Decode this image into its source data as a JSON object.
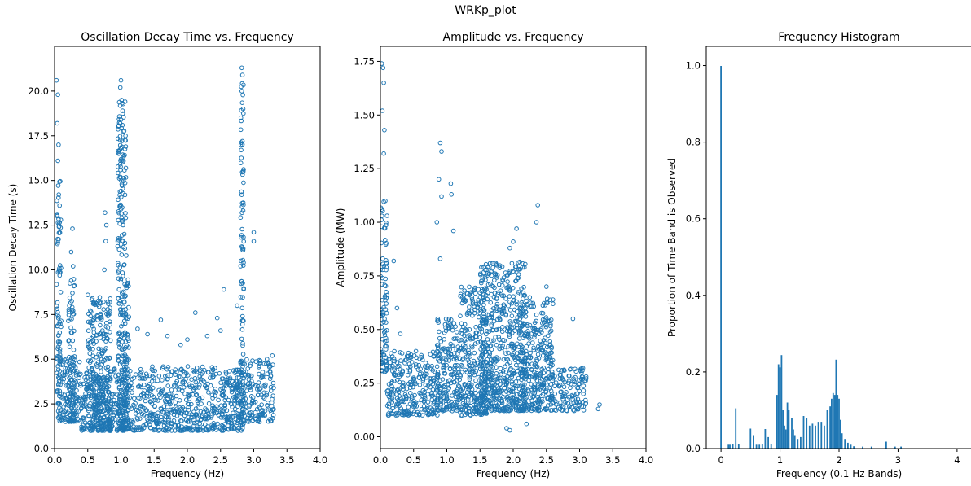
{
  "figure": {
    "suptitle": "WRKp_plot"
  },
  "colors": {
    "series": "#1f77b4",
    "axis": "#000000",
    "background": "#ffffff"
  },
  "chart_data": [
    {
      "type": "scatter",
      "title": "Oscillation Decay Time vs. Frequency",
      "xlabel": "Frequency (Hz)",
      "ylabel": "Oscillation Decay Time (s)",
      "xlim": [
        0,
        4
      ],
      "ylim": [
        0,
        22.5
      ],
      "xticks": [
        0,
        0.5,
        1,
        1.5,
        2,
        2.5,
        3,
        3.5,
        4
      ],
      "xtick_labels": [
        "0.0",
        "0.5",
        "1.0",
        "1.5",
        "2.0",
        "2.5",
        "3.0",
        "3.5",
        "4.0"
      ],
      "yticks": [
        0,
        2.5,
        5,
        7.5,
        10,
        12.5,
        15,
        17.5,
        20
      ],
      "ytick_labels": [
        "0.0",
        "2.5",
        "5.0",
        "7.5",
        "10.0",
        "12.5",
        "15.0",
        "17.5",
        "20.0"
      ],
      "marker": "hollow-circle",
      "density_bands": [
        {
          "x": [
            0.03,
            0.1
          ],
          "y": [
            2.5,
            15
          ]
        },
        {
          "x": [
            0.05,
            0.4
          ],
          "y": [
            1.5,
            5.2
          ]
        },
        {
          "x": [
            0.2,
            0.3
          ],
          "y": [
            1.5,
            9.5
          ]
        },
        {
          "x": [
            0.4,
            2.8
          ],
          "y": [
            1.0,
            4.6
          ]
        },
        {
          "x": [
            0.5,
            0.85
          ],
          "y": [
            1.0,
            8.5
          ]
        },
        {
          "x": [
            0.95,
            1.08
          ],
          "y": [
            1.0,
            19.5
          ]
        },
        {
          "x": [
            1.05,
            1.12
          ],
          "y": [
            1.0,
            9.5
          ]
        },
        {
          "x": [
            2.8,
            2.85
          ],
          "y": [
            1.0,
            20.5
          ]
        },
        {
          "x": [
            2.75,
            3.3
          ],
          "y": [
            1.5,
            5.0
          ]
        }
      ],
      "points": [
        [
          0.03,
          20.6
        ],
        [
          0.05,
          19.8
        ],
        [
          0.04,
          18.2
        ],
        [
          0.06,
          17.0
        ],
        [
          0.05,
          16.1
        ],
        [
          0.27,
          12.3
        ],
        [
          0.25,
          11.0
        ],
        [
          0.28,
          10.2
        ],
        [
          0.5,
          8.6
        ],
        [
          0.6,
          8.1
        ],
        [
          0.65,
          7.4
        ],
        [
          0.76,
          13.2
        ],
        [
          0.78,
          12.5
        ],
        [
          0.77,
          11.6
        ],
        [
          0.75,
          10.0
        ],
        [
          1.0,
          20.6
        ],
        [
          0.99,
          20.2
        ],
        [
          1.01,
          19.5
        ],
        [
          1.0,
          18.4
        ],
        [
          1.0,
          16.8
        ],
        [
          1.05,
          12.0
        ],
        [
          1.06,
          11.5
        ],
        [
          1.08,
          10.8
        ],
        [
          1.25,
          6.7
        ],
        [
          1.4,
          6.4
        ],
        [
          1.6,
          7.2
        ],
        [
          1.7,
          6.3
        ],
        [
          1.9,
          5.8
        ],
        [
          2.0,
          6.1
        ],
        [
          2.12,
          7.6
        ],
        [
          2.45,
          7.3
        ],
        [
          2.55,
          8.9
        ],
        [
          2.75,
          8.0
        ],
        [
          2.5,
          6.6
        ],
        [
          2.3,
          6.3
        ],
        [
          2.82,
          21.3
        ],
        [
          2.83,
          20.9
        ],
        [
          2.82,
          20.0
        ],
        [
          2.84,
          19.0
        ],
        [
          2.83,
          17.2
        ],
        [
          3.0,
          12.1
        ],
        [
          3.0,
          11.6
        ],
        [
          3.1,
          4.9
        ],
        [
          3.2,
          5.0
        ],
        [
          3.25,
          4.6
        ],
        [
          3.28,
          5.2
        ],
        [
          3.3,
          3.4
        ],
        [
          3.3,
          2.2
        ]
      ]
    },
    {
      "type": "scatter",
      "title": "Amplitude vs. Frequency",
      "xlabel": "Frequency (Hz)",
      "ylabel": "Amplitude (MW)",
      "xlim": [
        0,
        4
      ],
      "ylim": [
        -0.055,
        1.82
      ],
      "xticks": [
        0,
        0.5,
        1,
        1.5,
        2,
        2.5,
        3,
        3.5,
        4
      ],
      "xtick_labels": [
        "0.0",
        "0.5",
        "1.0",
        "1.5",
        "2.0",
        "2.5",
        "3.0",
        "3.5",
        "4.0"
      ],
      "yticks": [
        0,
        0.25,
        0.5,
        0.75,
        1.0,
        1.25,
        1.5,
        1.75
      ],
      "ytick_labels": [
        "0.00",
        "0.25",
        "0.50",
        "0.75",
        "1.00",
        "1.25",
        "1.50",
        "1.75"
      ],
      "marker": "hollow-circle",
      "density_bands": [
        {
          "x": [
            0.0,
            0.1
          ],
          "y": [
            0.3,
            1.1
          ]
        },
        {
          "x": [
            0.1,
            0.9
          ],
          "y": [
            0.1,
            0.4
          ]
        },
        {
          "x": [
            0.85,
            1.2
          ],
          "y": [
            0.12,
            0.55
          ]
        },
        {
          "x": [
            1.2,
            1.6
          ],
          "y": [
            0.1,
            0.7
          ]
        },
        {
          "x": [
            1.5,
            2.2
          ],
          "y": [
            0.12,
            0.82
          ]
        },
        {
          "x": [
            2.1,
            2.6
          ],
          "y": [
            0.12,
            0.65
          ]
        },
        {
          "x": [
            2.6,
            3.1
          ],
          "y": [
            0.12,
            0.32
          ]
        }
      ],
      "points": [
        [
          0.02,
          1.74
        ],
        [
          0.04,
          1.72
        ],
        [
          0.05,
          1.65
        ],
        [
          0.03,
          1.52
        ],
        [
          0.06,
          1.43
        ],
        [
          0.05,
          1.32
        ],
        [
          0.9,
          1.37
        ],
        [
          0.92,
          1.33
        ],
        [
          0.88,
          1.2
        ],
        [
          0.92,
          1.12
        ],
        [
          0.85,
          1.0
        ],
        [
          0.9,
          0.83
        ],
        [
          1.06,
          1.18
        ],
        [
          1.07,
          1.13
        ],
        [
          1.1,
          0.96
        ],
        [
          0.2,
          0.82
        ],
        [
          0.25,
          0.6
        ],
        [
          0.3,
          0.48
        ],
        [
          2.37,
          1.08
        ],
        [
          2.35,
          1.0
        ],
        [
          2.05,
          0.97
        ],
        [
          2.0,
          0.91
        ],
        [
          1.95,
          0.88
        ],
        [
          2.5,
          0.7
        ],
        [
          2.6,
          0.62
        ],
        [
          2.9,
          0.55
        ],
        [
          3.05,
          0.32
        ],
        [
          3.1,
          0.28
        ],
        [
          3.3,
          0.15
        ],
        [
          3.28,
          0.13
        ],
        [
          1.9,
          0.04
        ],
        [
          1.95,
          0.03
        ],
        [
          2.2,
          0.06
        ]
      ]
    },
    {
      "type": "bar",
      "title": "Frequency Histogram",
      "xlabel": "Frequency (0.1 Hz Bands)",
      "ylabel": "Proportion of Time Band is Observed",
      "xlim": [
        -0.25,
        4.25
      ],
      "ylim": [
        0,
        1.05
      ],
      "xticks": [
        0,
        1,
        2,
        3,
        4
      ],
      "xtick_labels": [
        "0",
        "1",
        "2",
        "3",
        "4"
      ],
      "yticks": [
        0,
        0.2,
        0.4,
        0.6,
        0.8,
        1.0
      ],
      "ytick_labels": [
        "0.0",
        "0.2",
        "0.4",
        "0.6",
        "0.8",
        "1.0"
      ],
      "bin_width": 0.025,
      "bins": [
        [
          0.0,
          0.999
        ],
        [
          0.125,
          0.01
        ],
        [
          0.15,
          0.01
        ],
        [
          0.2,
          0.011
        ],
        [
          0.25,
          0.105
        ],
        [
          0.3,
          0.012
        ],
        [
          0.5,
          0.052
        ],
        [
          0.55,
          0.035
        ],
        [
          0.6,
          0.01
        ],
        [
          0.65,
          0.01
        ],
        [
          0.7,
          0.012
        ],
        [
          0.75,
          0.051
        ],
        [
          0.8,
          0.03
        ],
        [
          0.85,
          0.012
        ],
        [
          0.95,
          0.14
        ],
        [
          0.975,
          0.22
        ],
        [
          1.0,
          0.212
        ],
        [
          1.025,
          0.244
        ],
        [
          1.05,
          0.1
        ],
        [
          1.075,
          0.06
        ],
        [
          1.1,
          0.05
        ],
        [
          1.125,
          0.12
        ],
        [
          1.15,
          0.1
        ],
        [
          1.2,
          0.08
        ],
        [
          1.225,
          0.05
        ],
        [
          1.25,
          0.035
        ],
        [
          1.3,
          0.025
        ],
        [
          1.35,
          0.03
        ],
        [
          1.4,
          0.085
        ],
        [
          1.45,
          0.08
        ],
        [
          1.5,
          0.06
        ],
        [
          1.55,
          0.065
        ],
        [
          1.6,
          0.06
        ],
        [
          1.65,
          0.07
        ],
        [
          1.7,
          0.07
        ],
        [
          1.75,
          0.06
        ],
        [
          1.8,
          0.1
        ],
        [
          1.85,
          0.11
        ],
        [
          1.875,
          0.13
        ],
        [
          1.9,
          0.145
        ],
        [
          1.925,
          0.14
        ],
        [
          1.95,
          0.232
        ],
        [
          1.975,
          0.14
        ],
        [
          2.0,
          0.13
        ],
        [
          2.025,
          0.075
        ],
        [
          2.05,
          0.04
        ],
        [
          2.1,
          0.025
        ],
        [
          2.15,
          0.015
        ],
        [
          2.2,
          0.01
        ],
        [
          2.25,
          0.006
        ],
        [
          2.4,
          0.005
        ],
        [
          2.55,
          0.005
        ],
        [
          2.8,
          0.018
        ],
        [
          2.95,
          0.005
        ],
        [
          3.05,
          0.005
        ]
      ]
    }
  ]
}
